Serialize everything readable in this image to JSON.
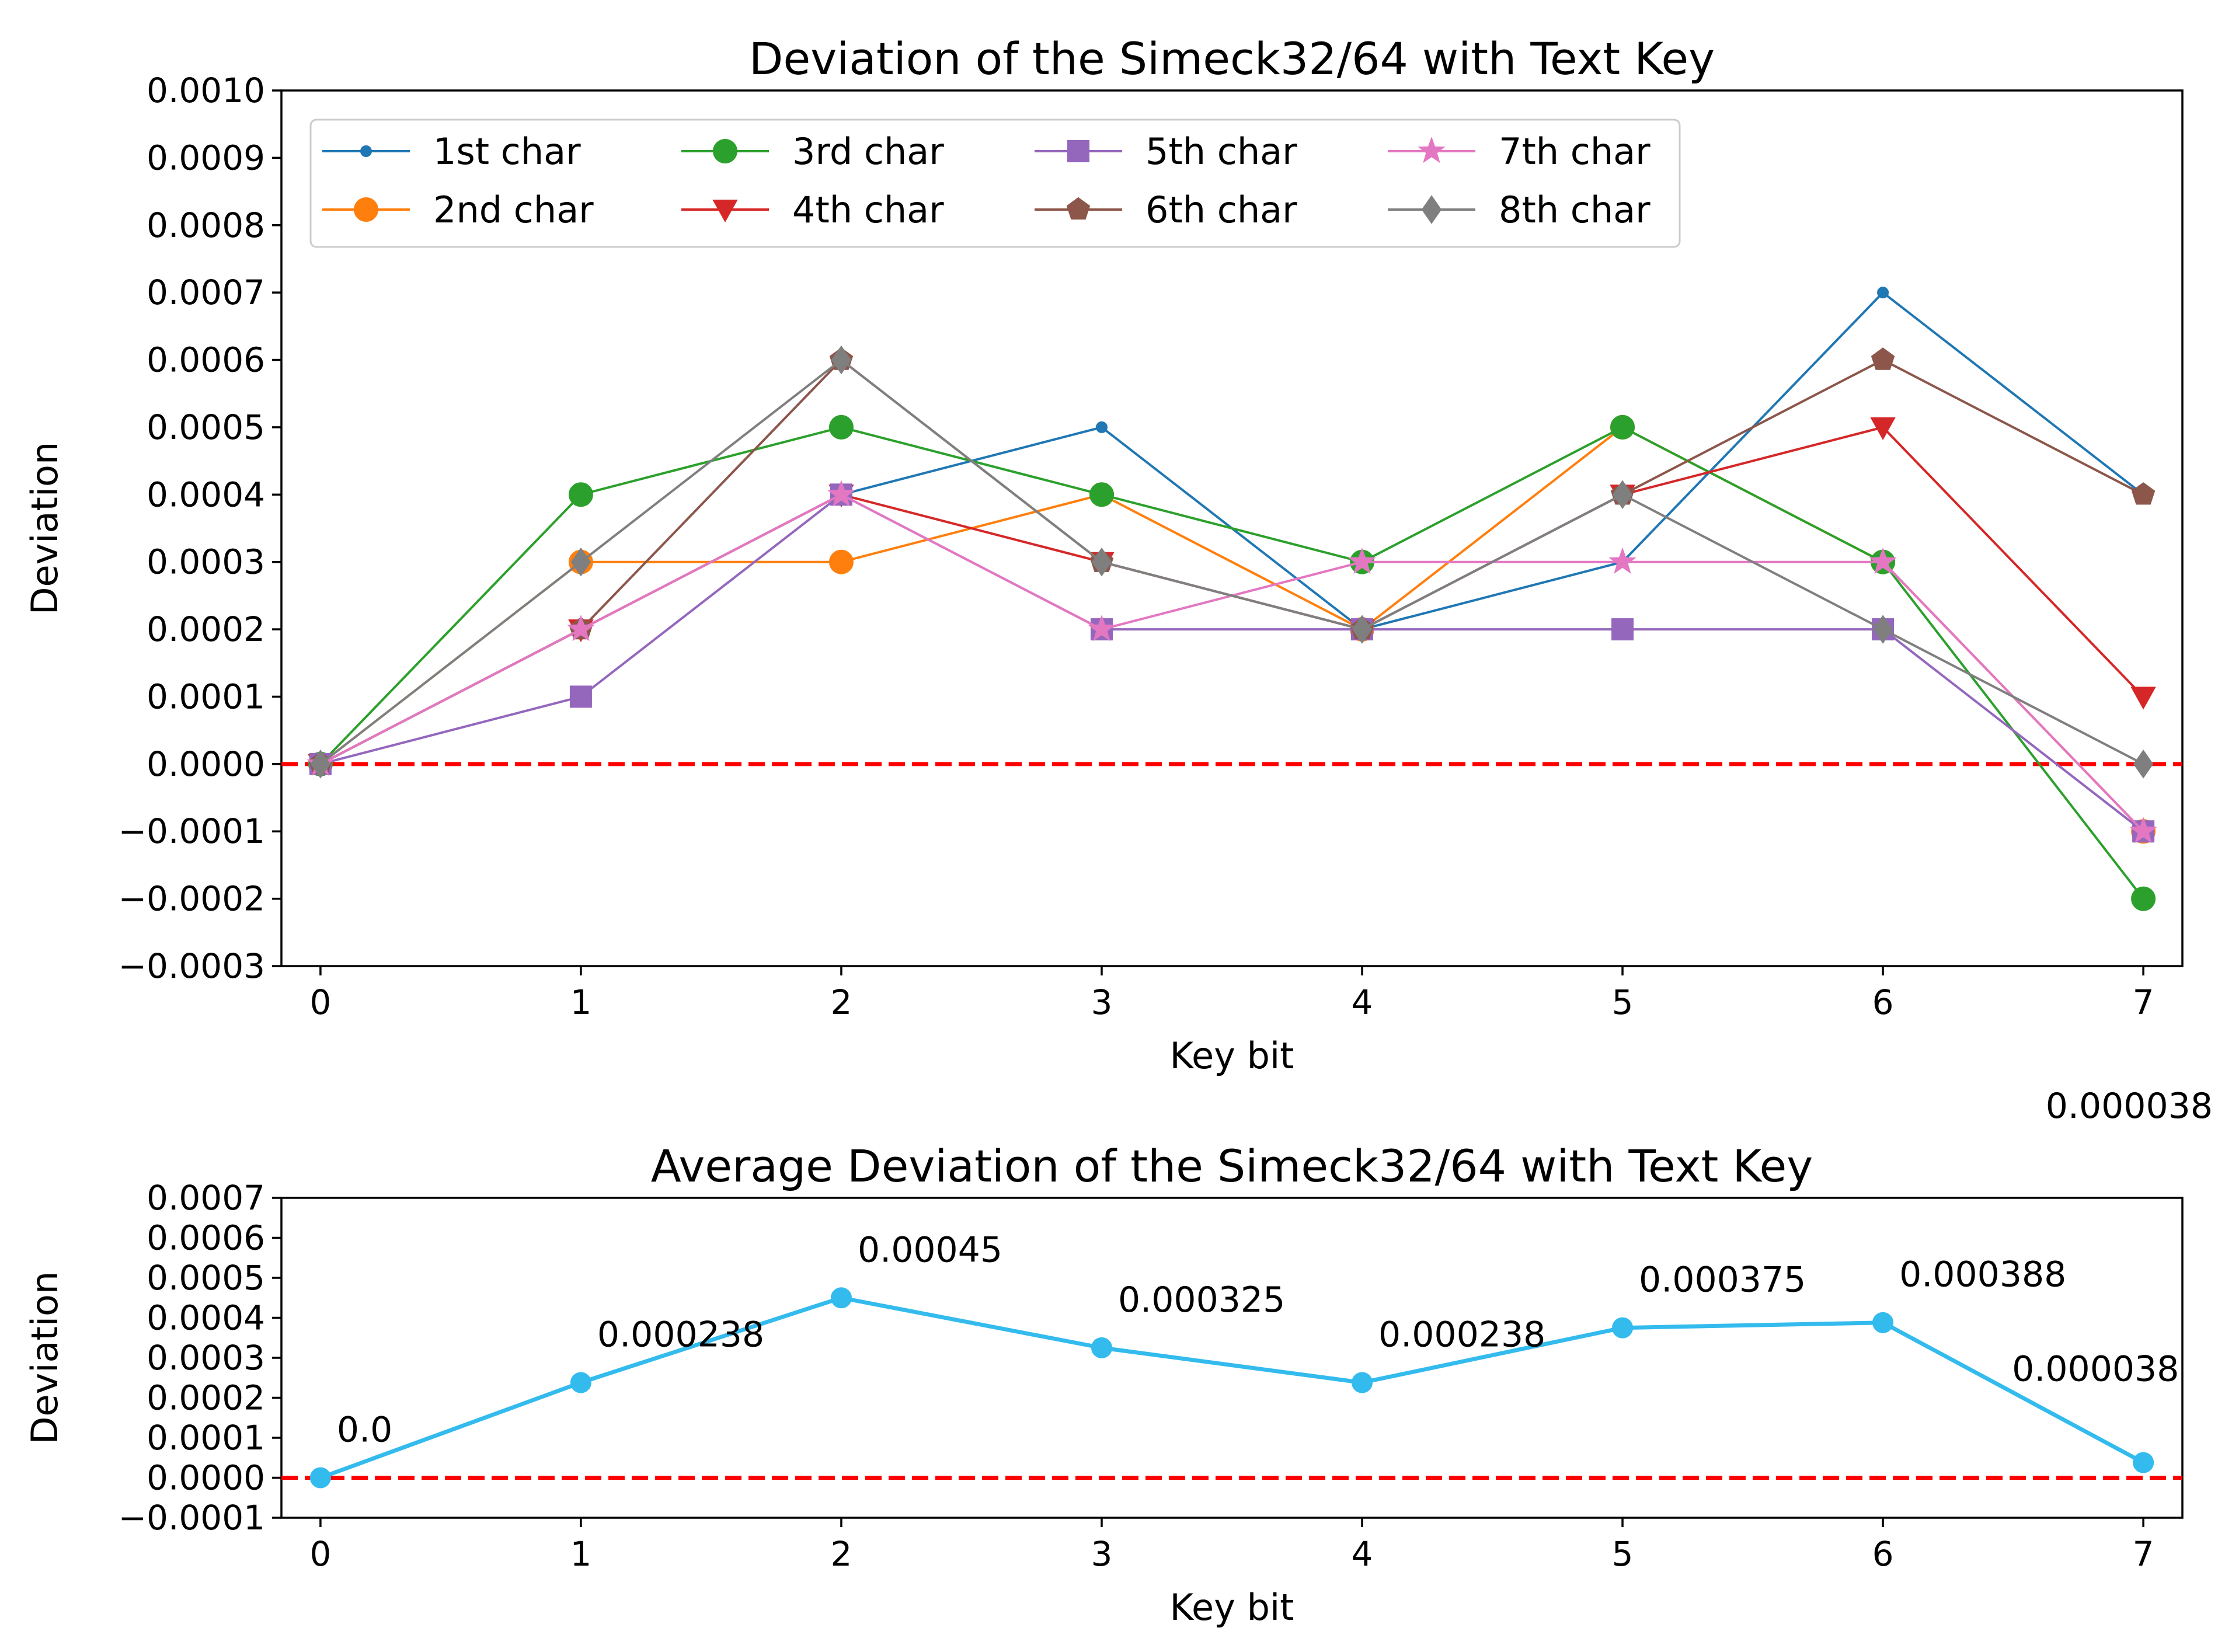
{
  "chart_data": [
    {
      "type": "line",
      "title": "Deviation of the Simeck32/64 with Text Key",
      "xlabel": "Key bit",
      "ylabel": "Deviation",
      "x": [
        0,
        1,
        2,
        3,
        4,
        5,
        6,
        7
      ],
      "xlim": [
        -0.15,
        7.15
      ],
      "ylim": [
        -0.0003,
        0.001
      ],
      "xticks": [
        "0",
        "1",
        "2",
        "3",
        "4",
        "5",
        "6",
        "7"
      ],
      "yticks": [
        -0.0003,
        -0.0002,
        -0.0001,
        0.0,
        0.0001,
        0.0002,
        0.0003,
        0.0004,
        0.0005,
        0.0006,
        0.0007,
        0.0008,
        0.0009,
        0.001
      ],
      "ytick_labels": [
        "−0.0003",
        "−0.0002",
        "−0.0001",
        "0.0000",
        "0.0001",
        "0.0002",
        "0.0003",
        "0.0004",
        "0.0005",
        "0.0006",
        "0.0007",
        "0.0008",
        "0.0009",
        "0.0010"
      ],
      "reference_line": {
        "y": 0,
        "color": "#ff0000",
        "style": "dashed"
      },
      "legend_position": "upper-left",
      "series": [
        {
          "name": "1st char",
          "color": "#1f77b4",
          "marker": "dot",
          "values": [
            0.0,
            0.0002,
            0.0004,
            0.0005,
            0.0002,
            0.0003,
            0.0007,
            0.0004
          ]
        },
        {
          "name": "2nd char",
          "color": "#ff7f0e",
          "marker": "circle",
          "values": [
            0.0,
            0.0003,
            0.0003,
            0.0004,
            0.0002,
            0.0005,
            0.0003,
            -0.0001
          ]
        },
        {
          "name": "3rd char",
          "color": "#2ca02c",
          "marker": "circle",
          "values": [
            0.0,
            0.0004,
            0.0005,
            0.0004,
            0.0003,
            0.0005,
            0.0003,
            -0.0002
          ]
        },
        {
          "name": "4th char",
          "color": "#d62728",
          "marker": "triangle-down",
          "values": [
            0.0,
            0.0002,
            0.0004,
            0.0003,
            0.0002,
            0.0004,
            0.0005,
            0.0001
          ]
        },
        {
          "name": "5th char",
          "color": "#9467bd",
          "marker": "square",
          "values": [
            0.0,
            0.0001,
            0.0004,
            0.0002,
            0.0002,
            0.0002,
            0.0002,
            -0.0001
          ]
        },
        {
          "name": "6th char",
          "color": "#8c564b",
          "marker": "pentagon",
          "values": [
            0.0,
            0.0002,
            0.0006,
            0.0003,
            0.0002,
            0.0004,
            0.0006,
            0.0004
          ]
        },
        {
          "name": "7th char",
          "color": "#e377c2",
          "marker": "star",
          "values": [
            0.0,
            0.0002,
            0.0004,
            0.0002,
            0.0003,
            0.0003,
            0.0003,
            -0.0001
          ]
        },
        {
          "name": "8th char",
          "color": "#7f7f7f",
          "marker": "diamond",
          "values": [
            0.0,
            0.0003,
            0.0006,
            0.0003,
            0.0002,
            0.0004,
            0.0002,
            0.0
          ]
        }
      ]
    },
    {
      "type": "line",
      "title": "Average Deviation of the Simeck32/64 with Text Key",
      "xlabel": "Key bit",
      "ylabel": "Deviation",
      "x": [
        0,
        1,
        2,
        3,
        4,
        5,
        6,
        7
      ],
      "xlim": [
        -0.15,
        7.15
      ],
      "ylim": [
        -0.0001,
        0.0007
      ],
      "xticks": [
        "0",
        "1",
        "2",
        "3",
        "4",
        "5",
        "6",
        "7"
      ],
      "yticks": [
        -0.0001,
        0.0,
        0.0001,
        0.0002,
        0.0003,
        0.0004,
        0.0005,
        0.0006,
        0.0007
      ],
      "ytick_labels": [
        "−0.0001",
        "0.0000",
        "0.0001",
        "0.0002",
        "0.0003",
        "0.0004",
        "0.0005",
        "0.0006",
        "0.0007"
      ],
      "reference_line": {
        "y": 0,
        "color": "#ff0000",
        "style": "dashed"
      },
      "series": [
        {
          "name": "Average",
          "color": "#33bbee",
          "marker": "circle",
          "values": [
            0.0,
            0.000238,
            0.00045,
            0.000325,
            0.000238,
            0.000375,
            0.000388,
            3.8e-05
          ]
        }
      ],
      "data_labels": [
        "0.0",
        "0.000238",
        "0.00045",
        "0.000325",
        "0.000238",
        "0.000375",
        "0.000388",
        "0.000038"
      ],
      "extra_annotation": "0.000038"
    }
  ]
}
